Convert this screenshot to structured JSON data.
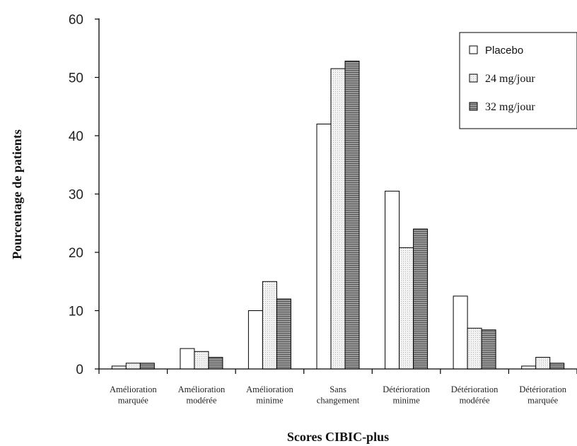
{
  "chart_data": {
    "type": "bar",
    "title": "",
    "xlabel": "Scores CIBIC-plus",
    "ylabel": "Pourcentage de patients",
    "ylim": [
      0,
      60
    ],
    "yticks": [
      0,
      10,
      20,
      30,
      40,
      50,
      60
    ],
    "grid": false,
    "legend_position": "top-right",
    "categories": [
      [
        "Amélioration",
        "marquée"
      ],
      [
        "Amélioration",
        "modérée"
      ],
      [
        "Amélioration",
        "minime"
      ],
      [
        "Sans",
        "changement"
      ],
      [
        "Détérioration",
        "minime"
      ],
      [
        "Détérioration",
        "modérée"
      ],
      [
        "Détérioration",
        "marquée"
      ]
    ],
    "series": [
      {
        "name": "Placebo",
        "values": [
          0.5,
          3.5,
          10,
          42,
          30.5,
          12.5,
          0.5
        ],
        "fill": "#ffffff",
        "pattern": "none"
      },
      {
        "name": "24 mg/jour",
        "values": [
          1,
          3,
          15,
          51.5,
          20.8,
          7,
          2
        ],
        "fill": "#eeeeee",
        "pattern": "dots"
      },
      {
        "name": "32 mg/jour",
        "values": [
          1,
          2,
          12,
          52.8,
          24,
          6.7,
          1
        ],
        "fill": "#8a8a8a",
        "pattern": "hlines"
      }
    ]
  }
}
